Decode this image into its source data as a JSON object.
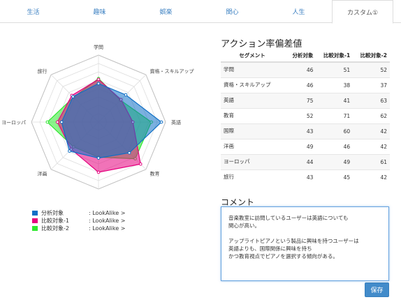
{
  "tabs": [
    {
      "label": "生活"
    },
    {
      "label": "趣味"
    },
    {
      "label": "娯楽"
    },
    {
      "label": "関心"
    },
    {
      "label": "人生"
    },
    {
      "label": "カスタム①"
    }
  ],
  "chart_data": {
    "type": "radar",
    "axes": [
      "学問",
      "資格・スキルアップ",
      "英語",
      "教育",
      "国際",
      "洋画",
      "ヨーロッパ",
      "旅行"
    ],
    "series": [
      {
        "name": "分析対象",
        "values": [
          46,
          46,
          75,
          52,
          43,
          49,
          44,
          43
        ],
        "color": "#0f6fc6"
      },
      {
        "name": "比較対象-1",
        "values": [
          51,
          38,
          41,
          71,
          60,
          46,
          49,
          45
        ],
        "color": "#e6007e"
      },
      {
        "name": "比較対象-2",
        "values": [
          52,
          37,
          63,
          62,
          42,
          42,
          61,
          42
        ],
        "color": "#2ee82e"
      }
    ],
    "range": [
      0,
      80
    ]
  },
  "legend": [
    {
      "name": "分析対象",
      "suffix": ": LookAlike >",
      "color": "#0f6fc6"
    },
    {
      "name": "比較対象-1",
      "suffix": ": LookAlike >",
      "color": "#e6007e"
    },
    {
      "name": "比較対象-2",
      "suffix": ": LookAlike >",
      "color": "#2ee82e"
    }
  ],
  "table": {
    "title": "アクション率偏差値",
    "headers": [
      "セグメント",
      "分析対象",
      "比較対象-1",
      "比較対象-2"
    ],
    "rows": [
      [
        "学問",
        "46",
        "51",
        "52"
      ],
      [
        "資格・スキルアップ",
        "46",
        "38",
        "37"
      ],
      [
        "英語",
        "75",
        "41",
        "63"
      ],
      [
        "教育",
        "52",
        "71",
        "62"
      ],
      [
        "国際",
        "43",
        "60",
        "42"
      ],
      [
        "洋画",
        "49",
        "46",
        "42"
      ],
      [
        "ヨーロッパ",
        "44",
        "49",
        "61"
      ],
      [
        "旅行",
        "43",
        "45",
        "42"
      ]
    ]
  },
  "comment": {
    "title": "コメント",
    "text": "音楽教室に訪問しているユーザーは英語についても\n関心が高い。\n\nアップライトピアノという製品に興味を持つユーザーは\n英語よりも、国際関係に興味を持ち\nかつ教育視点でピアノを選択する傾向がある。"
  },
  "save_label": "保存"
}
